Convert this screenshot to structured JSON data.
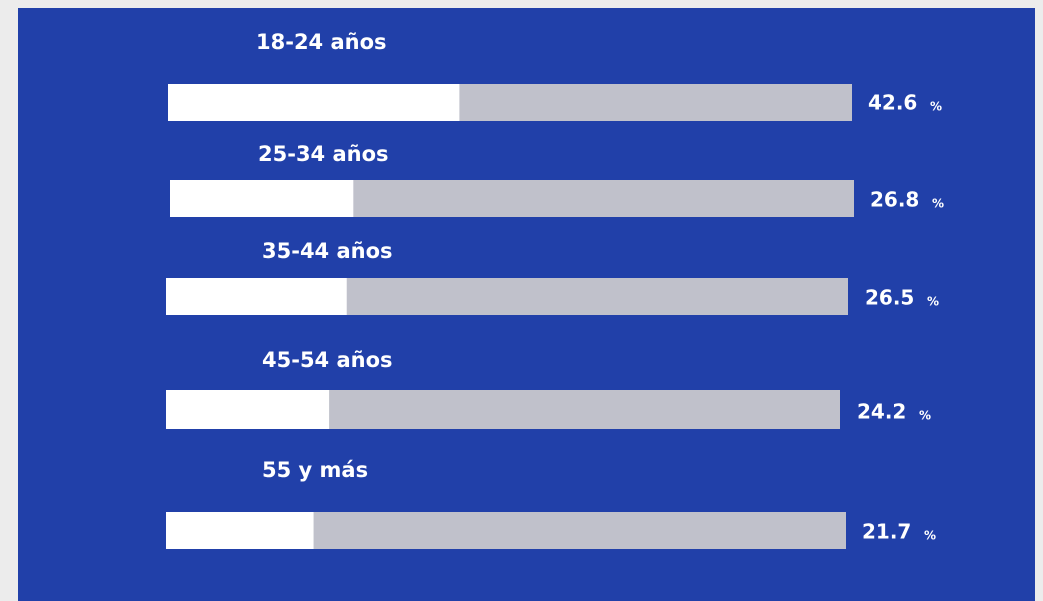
{
  "chart_data": {
    "type": "bar",
    "orientation": "horizontal",
    "categories": [
      "18-24 años",
      "25-34 años",
      "35-44 años",
      "45-54 años",
      "55 y más"
    ],
    "values": [
      42.6,
      26.8,
      26.5,
      24.2,
      21.7
    ],
    "unit": "%",
    "color": "#ffffff",
    "track_color": "#c0c1cb",
    "background": "#2140a9",
    "xlim": [
      0,
      100
    ]
  }
}
